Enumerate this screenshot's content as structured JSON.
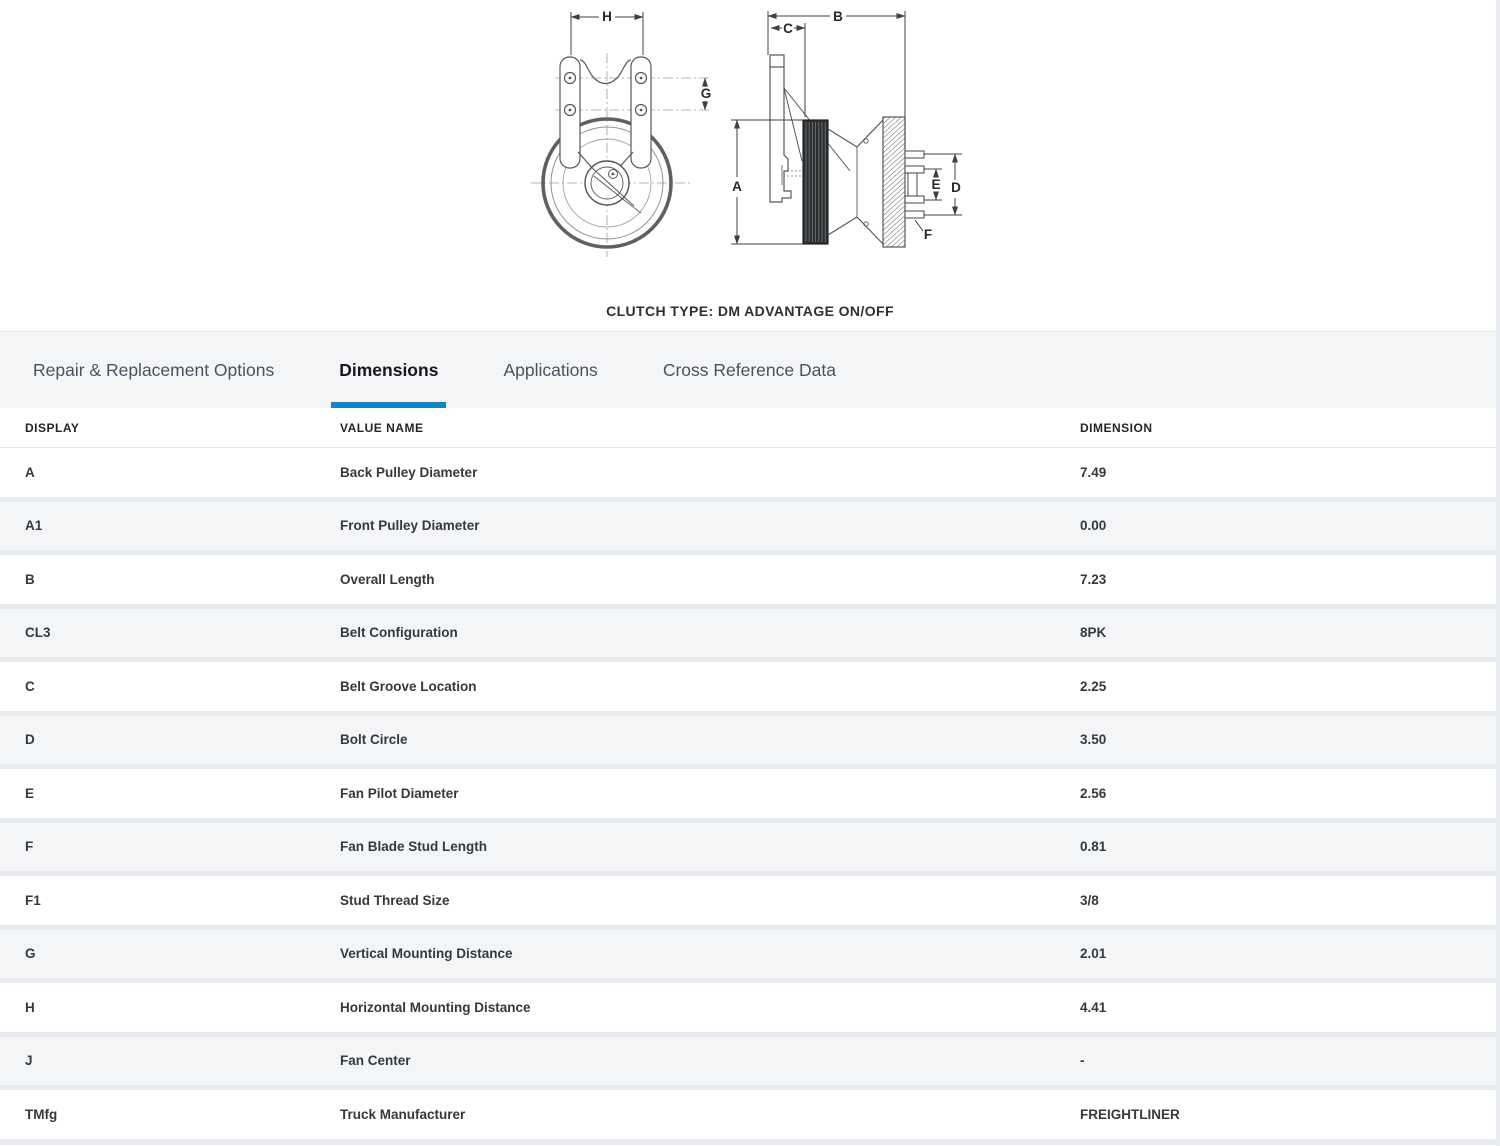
{
  "diagram": {
    "caption": "CLUTCH TYPE: DM ADVANTAGE ON/OFF",
    "labels": {
      "h": "H",
      "g": "G",
      "b": "B",
      "c": "C",
      "a": "A",
      "e": "E",
      "d": "D",
      "f": "F"
    }
  },
  "tabs": [
    {
      "label": "Repair & Replacement Options",
      "active": false
    },
    {
      "label": "Dimensions",
      "active": true
    },
    {
      "label": "Applications",
      "active": false
    },
    {
      "label": "Cross Reference Data",
      "active": false
    }
  ],
  "table": {
    "headers": [
      "DISPLAY",
      "VALUE NAME",
      "DIMENSION"
    ],
    "rows": [
      {
        "display": "A",
        "value_name": "Back Pulley Diameter",
        "dimension": "7.49"
      },
      {
        "display": "A1",
        "value_name": "Front Pulley Diameter",
        "dimension": "0.00"
      },
      {
        "display": "B",
        "value_name": "Overall Length",
        "dimension": "7.23"
      },
      {
        "display": "CL3",
        "value_name": "Belt Configuration",
        "dimension": "8PK"
      },
      {
        "display": "C",
        "value_name": "Belt Groove Location",
        "dimension": "2.25"
      },
      {
        "display": "D",
        "value_name": "Bolt Circle",
        "dimension": "3.50"
      },
      {
        "display": "E",
        "value_name": "Fan Pilot Diameter",
        "dimension": "2.56"
      },
      {
        "display": "F",
        "value_name": "Fan Blade Stud Length",
        "dimension": "0.81"
      },
      {
        "display": "F1",
        "value_name": "Stud Thread Size",
        "dimension": "3/8"
      },
      {
        "display": "G",
        "value_name": "Vertical Mounting Distance",
        "dimension": "2.01"
      },
      {
        "display": "H",
        "value_name": "Horizontal Mounting Distance",
        "dimension": "4.41"
      },
      {
        "display": "J",
        "value_name": "Fan Center",
        "dimension": "-"
      },
      {
        "display": "TMfg",
        "value_name": "Truck Manufacturer",
        "dimension": "FREIGHTLINER"
      }
    ]
  },
  "colors": {
    "accent_blue": "#0d87c7",
    "tab_bar_bg": "#f4f5f6",
    "row_alt_bg": "#f4f5f7",
    "row_separator": "#e7eaee"
  }
}
